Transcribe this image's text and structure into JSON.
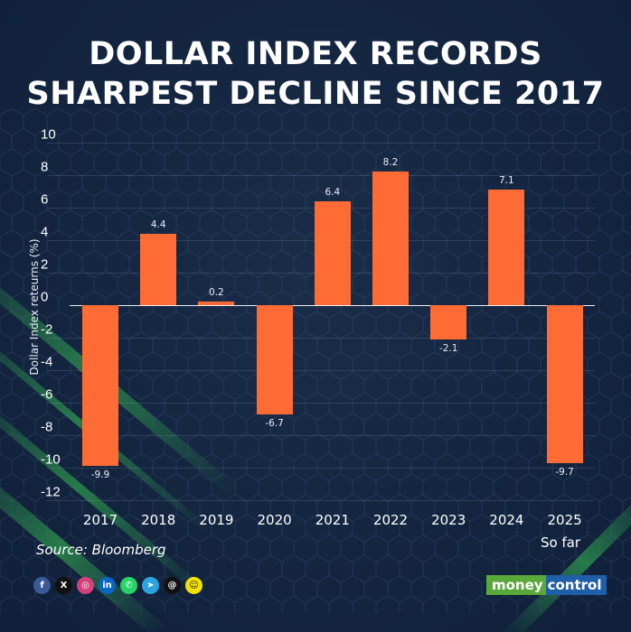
{
  "title": {
    "line1": "DOLLAR INDEX RECORDS",
    "line2": "SHARPEST DECLINE SINCE 2017"
  },
  "colors": {
    "background": "#13223a",
    "bar": "#ff6b35",
    "accent_green": "#2e964e",
    "text": "#ffffff"
  },
  "chart_data": {
    "type": "bar",
    "title": "DOLLAR INDEX RECORDS SHARPEST DECLINE SINCE 2017",
    "xlabel": "",
    "ylabel": "Dollar Index reteurns (%)",
    "categories": [
      "2017",
      "2018",
      "2019",
      "2020",
      "2021",
      "2022",
      "2023",
      "2024",
      "2025"
    ],
    "category_notes": {
      "2025": "So far"
    },
    "values": [
      -9.9,
      4.4,
      0.2,
      -6.7,
      6.4,
      8.2,
      -2.1,
      7.1,
      -9.7
    ],
    "value_labels": [
      "-9.9",
      "4.4",
      "0.2",
      "-6.7",
      "6.4",
      "8.2",
      "-2.1",
      "7.1",
      "-9.7"
    ],
    "ylim": [
      -12,
      10
    ],
    "yticks": [
      "10",
      "8",
      "6",
      "4",
      "2",
      "0",
      "-2",
      "-4",
      "-6",
      "-8",
      "-10",
      "-12"
    ],
    "grid": true,
    "legend": null
  },
  "axis": {
    "ylabel": "Dollar Index reteurns (%)",
    "last_category_note": "So far"
  },
  "footer": {
    "source": "Source: Bloomberg",
    "brand_part1": "money",
    "brand_part2": "control",
    "social_icons": [
      {
        "name": "facebook-icon",
        "glyph": "f",
        "color": "#3b5998"
      },
      {
        "name": "x-icon",
        "glyph": "X",
        "color": "#111111"
      },
      {
        "name": "instagram-icon",
        "glyph": "◎",
        "color": "#d6407a"
      },
      {
        "name": "linkedin-icon",
        "glyph": "in",
        "color": "#0a66c2"
      },
      {
        "name": "whatsapp-icon",
        "glyph": "✆",
        "color": "#25d366"
      },
      {
        "name": "telegram-icon",
        "glyph": "➤",
        "color": "#2aa3df"
      },
      {
        "name": "threads-icon",
        "glyph": "@",
        "color": "#111111"
      },
      {
        "name": "snapchat-icon",
        "glyph": "☺",
        "color": "#f5e100"
      }
    ]
  }
}
